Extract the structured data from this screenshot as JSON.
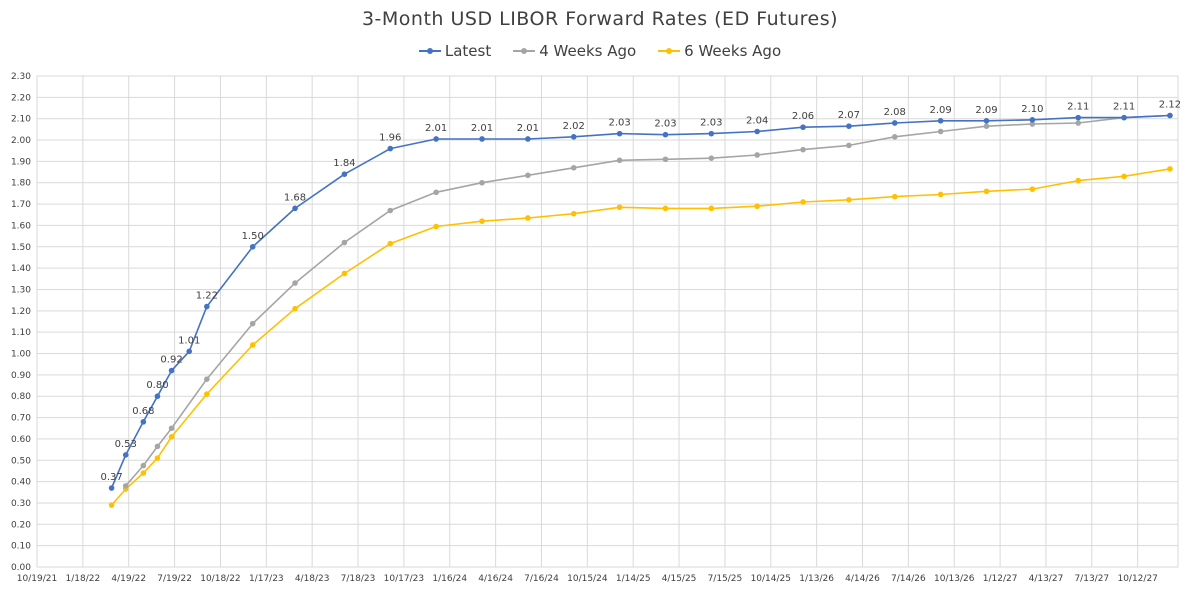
{
  "chart_data": {
    "type": "line",
    "title": "3-Month USD LIBOR Forward Rates (ED Futures)",
    "legend_position": "top",
    "grid": true,
    "ylim": [
      0,
      2.3
    ],
    "y_ticks": [
      "0.00",
      "0.10",
      "0.20",
      "0.30",
      "0.40",
      "0.50",
      "0.60",
      "0.70",
      "0.80",
      "0.90",
      "1.00",
      "1.10",
      "1.20",
      "1.30",
      "1.40",
      "1.50",
      "1.60",
      "1.70",
      "1.80",
      "1.90",
      "2.00",
      "2.10",
      "2.20",
      "2.30"
    ],
    "xlim": [
      "2021-10-19",
      "2027-12-31"
    ],
    "x_ticks": [
      {
        "date": "2021-10-19",
        "label": "10/19/21"
      },
      {
        "date": "2022-01-18",
        "label": "1/18/22"
      },
      {
        "date": "2022-04-19",
        "label": "4/19/22"
      },
      {
        "date": "2022-07-19",
        "label": "7/19/22"
      },
      {
        "date": "2022-10-18",
        "label": "10/18/22"
      },
      {
        "date": "2023-01-17",
        "label": "1/17/23"
      },
      {
        "date": "2023-04-18",
        "label": "4/18/23"
      },
      {
        "date": "2023-07-18",
        "label": "7/18/23"
      },
      {
        "date": "2023-10-17",
        "label": "10/17/23"
      },
      {
        "date": "2024-01-16",
        "label": "1/16/24"
      },
      {
        "date": "2024-04-16",
        "label": "4/16/24"
      },
      {
        "date": "2024-07-16",
        "label": "7/16/24"
      },
      {
        "date": "2024-10-15",
        "label": "10/15/24"
      },
      {
        "date": "2025-01-14",
        "label": "1/14/25"
      },
      {
        "date": "2025-04-15",
        "label": "4/15/25"
      },
      {
        "date": "2025-07-15",
        "label": "7/15/25"
      },
      {
        "date": "2025-10-14",
        "label": "10/14/25"
      },
      {
        "date": "2026-01-13",
        "label": "1/13/26"
      },
      {
        "date": "2026-04-14",
        "label": "4/14/26"
      },
      {
        "date": "2026-07-14",
        "label": "7/14/26"
      },
      {
        "date": "2026-10-13",
        "label": "10/13/26"
      },
      {
        "date": "2027-01-12",
        "label": "1/12/27"
      },
      {
        "date": "2027-04-13",
        "label": "4/13/27"
      },
      {
        "date": "2027-07-13",
        "label": "7/13/27"
      },
      {
        "date": "2027-10-12",
        "label": "10/12/27"
      }
    ],
    "x": [
      "2022-03-16",
      "2022-04-13",
      "2022-05-18",
      "2022-06-15",
      "2022-07-13",
      "2022-08-17",
      "2022-09-21",
      "2022-12-21",
      "2023-03-15",
      "2023-06-21",
      "2023-09-20",
      "2023-12-20",
      "2024-03-20",
      "2024-06-19",
      "2024-09-18",
      "2024-12-18",
      "2025-03-19",
      "2025-06-18",
      "2025-09-17",
      "2025-12-17",
      "2026-03-18",
      "2026-06-17",
      "2026-09-16",
      "2026-12-16",
      "2027-03-17",
      "2027-06-16",
      "2027-09-15",
      "2027-12-15"
    ],
    "series": [
      {
        "name": "Latest",
        "color": "#4472C4",
        "x": [
          "2022-03-16",
          "2022-04-13",
          "2022-05-18",
          "2022-06-15",
          "2022-07-13",
          "2022-08-17",
          "2022-09-21",
          "2022-12-21",
          "2023-03-15",
          "2023-06-21",
          "2023-09-20",
          "2023-12-20",
          "2024-03-20",
          "2024-06-19",
          "2024-09-18",
          "2024-12-18",
          "2025-03-19",
          "2025-06-18",
          "2025-09-17",
          "2025-12-17",
          "2026-03-18",
          "2026-06-17",
          "2026-09-16",
          "2026-12-16",
          "2027-03-17",
          "2027-06-16",
          "2027-09-15",
          "2027-12-15"
        ],
        "values": [
          0.37,
          0.525,
          0.68,
          0.8,
          0.92,
          1.01,
          1.22,
          1.5,
          1.68,
          1.84,
          1.96,
          2.005,
          2.005,
          2.005,
          2.015,
          2.03,
          2.025,
          2.03,
          2.04,
          2.06,
          2.065,
          2.08,
          2.09,
          2.09,
          2.095,
          2.105,
          2.105,
          2.115
        ],
        "labels": [
          "0.37",
          "0.53",
          "0.68",
          "0.80",
          "0.92",
          "1.01",
          "1.22",
          "1.50",
          "1.68",
          "1.84",
          "1.96",
          "2.01",
          "2.01",
          "2.01",
          "2.02",
          "2.03",
          "2.03",
          "2.03",
          "2.04",
          "2.06",
          "2.07",
          "2.08",
          "2.09",
          "2.09",
          "2.10",
          "2.11",
          "2.11",
          "2.12"
        ]
      },
      {
        "name": "4 Weeks Ago",
        "color": "#A5A5A5",
        "x": [
          "2022-04-13",
          "2022-05-18",
          "2022-06-15",
          "2022-07-13",
          "2022-09-21",
          "2022-12-21",
          "2023-03-15",
          "2023-06-21",
          "2023-09-20",
          "2023-12-20",
          "2024-03-20",
          "2024-06-19",
          "2024-09-18",
          "2024-12-18",
          "2025-03-19",
          "2025-06-18",
          "2025-09-17",
          "2025-12-17",
          "2026-03-18",
          "2026-06-17",
          "2026-09-16",
          "2026-12-16",
          "2027-03-17",
          "2027-06-16",
          "2027-09-15",
          "2027-12-15"
        ],
        "values": [
          0.38,
          0.475,
          0.565,
          0.65,
          0.88,
          1.14,
          1.33,
          1.52,
          1.67,
          1.755,
          1.8,
          1.835,
          1.87,
          1.905,
          1.91,
          1.915,
          1.93,
          1.955,
          1.975,
          2.015,
          2.04,
          2.065,
          2.075,
          2.08,
          2.105,
          2.115
        ]
      },
      {
        "name": "6 Weeks Ago",
        "color": "#FFC000",
        "x": [
          "2022-03-16",
          "2022-04-13",
          "2022-05-18",
          "2022-06-15",
          "2022-07-13",
          "2022-09-21",
          "2022-12-21",
          "2023-03-15",
          "2023-06-21",
          "2023-09-20",
          "2023-12-20",
          "2024-03-20",
          "2024-06-19",
          "2024-09-18",
          "2024-12-18",
          "2025-03-19",
          "2025-06-18",
          "2025-09-17",
          "2025-12-17",
          "2026-03-18",
          "2026-06-17",
          "2026-09-16",
          "2026-12-16",
          "2027-03-17",
          "2027-06-16",
          "2027-09-15",
          "2027-12-15"
        ],
        "values": [
          0.29,
          0.365,
          0.44,
          0.51,
          0.61,
          0.81,
          1.04,
          1.21,
          1.375,
          1.515,
          1.595,
          1.62,
          1.635,
          1.655,
          1.685,
          1.68,
          1.68,
          1.69,
          1.71,
          1.72,
          1.735,
          1.745,
          1.76,
          1.77,
          1.81,
          1.83,
          1.865
        ]
      }
    ]
  }
}
